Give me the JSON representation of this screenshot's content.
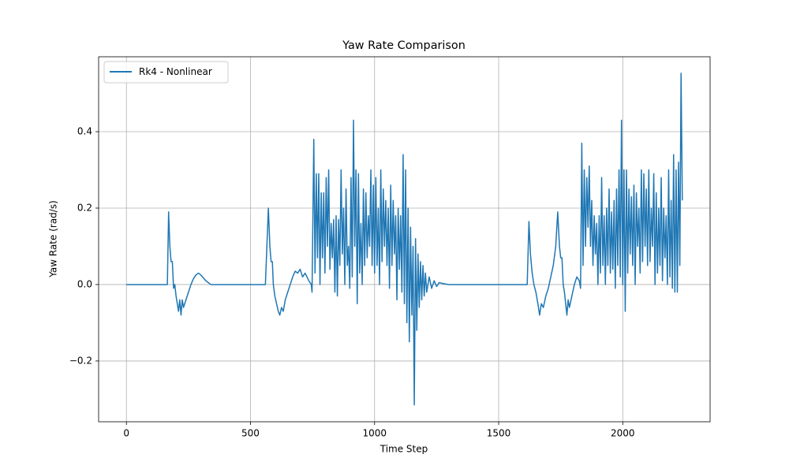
{
  "chart_data": {
    "type": "line",
    "title": "Yaw Rate Comparison",
    "x_label": "Time Step",
    "y_label": "Yaw Rate (rad/s)",
    "xlim": [
      -112,
      2352
    ],
    "ylim": [
      -0.359,
      0.596
    ],
    "xticks": [
      0,
      500,
      1000,
      1500,
      2000
    ],
    "yticks": [
      {
        "value": -0.2,
        "label": "−0.2"
      },
      {
        "value": 0,
        "label": "0.0"
      },
      0.2,
      0.4
    ],
    "grid": true,
    "legend": "upper left",
    "x": [
      0,
      165,
      170,
      175,
      180,
      185,
      190,
      195,
      200,
      210,
      215,
      220,
      225,
      230,
      240,
      250,
      260,
      270,
      280,
      290,
      300,
      320,
      340,
      360,
      560,
      572,
      578,
      583,
      588,
      592,
      598,
      605,
      612,
      618,
      625,
      632,
      640,
      650,
      660,
      670,
      680,
      690,
      700,
      710,
      720,
      735,
      745,
      748,
      755,
      760,
      765,
      770,
      775,
      780,
      785,
      790,
      795,
      800,
      805,
      810,
      815,
      820,
      825,
      830,
      835,
      840,
      845,
      850,
      855,
      860,
      865,
      870,
      875,
      880,
      885,
      890,
      895,
      900,
      905,
      910,
      915,
      920,
      925,
      930,
      935,
      940,
      945,
      950,
      955,
      960,
      965,
      970,
      975,
      980,
      985,
      990,
      995,
      1000,
      1005,
      1010,
      1015,
      1020,
      1025,
      1030,
      1035,
      1040,
      1045,
      1050,
      1055,
      1060,
      1065,
      1070,
      1075,
      1080,
      1085,
      1090,
      1095,
      1100,
      1105,
      1110,
      1115,
      1120,
      1125,
      1130,
      1135,
      1140,
      1145,
      1150,
      1155,
      1160,
      1165,
      1170,
      1175,
      1180,
      1185,
      1190,
      1195,
      1200,
      1205,
      1210,
      1220,
      1230,
      1240,
      1250,
      1260,
      1280,
      1300,
      1615,
      1622,
      1628,
      1635,
      1642,
      1650,
      1658,
      1665,
      1672,
      1680,
      1690,
      1700,
      1710,
      1720,
      1730,
      1738,
      1745,
      1750,
      1755,
      1760,
      1765,
      1770,
      1775,
      1780,
      1785,
      1795,
      1805,
      1815,
      1825,
      1830,
      1835,
      1840,
      1845,
      1850,
      1855,
      1860,
      1865,
      1870,
      1875,
      1880,
      1885,
      1890,
      1895,
      1900,
      1905,
      1910,
      1915,
      1920,
      1925,
      1930,
      1935,
      1940,
      1945,
      1950,
      1955,
      1960,
      1965,
      1970,
      1975,
      1980,
      1985,
      1990,
      1995,
      2000,
      2005,
      2010,
      2015,
      2020,
      2025,
      2030,
      2035,
      2040,
      2045,
      2050,
      2055,
      2060,
      2065,
      2070,
      2075,
      2080,
      2085,
      2090,
      2095,
      2100,
      2105,
      2110,
      2115,
      2120,
      2125,
      2130,
      2135,
      2140,
      2145,
      2150,
      2155,
      2160,
      2165,
      2170,
      2175,
      2180,
      2185,
      2190,
      2195,
      2200,
      2205,
      2210,
      2215,
      2220,
      2225,
      2230,
      2235,
      2240
    ],
    "series": [
      {
        "name": "Rk4 - Nonlinear",
        "color": "#1f77b4",
        "values": [
          0,
          0,
          0.19,
          0.1,
          0.06,
          0.06,
          -0.01,
          0,
          -0.03,
          -0.07,
          -0.04,
          -0.08,
          -0.04,
          -0.06,
          -0.04,
          -0.02,
          0,
          0.015,
          0.025,
          0.03,
          0.025,
          0.01,
          0,
          0,
          0,
          0.2,
          0.1,
          0.06,
          0.06,
          0,
          -0.03,
          -0.05,
          -0.07,
          -0.08,
          -0.06,
          -0.07,
          -0.04,
          -0.02,
          0,
          0.02,
          0.035,
          0.03,
          0.04,
          0.02,
          0.03,
          0.01,
          0,
          -0.02,
          0.38,
          0.03,
          0.29,
          0.07,
          0.29,
          0,
          0.24,
          0.07,
          0.24,
          0.03,
          0.28,
          0.1,
          0.3,
          0.04,
          0.16,
          0.07,
          0.17,
          -0.02,
          0.18,
          -0.03,
          0.17,
          0.05,
          0.3,
          0.08,
          0.2,
          0,
          0.25,
          0.05,
          0.1,
          -0.01,
          0.28,
          0.02,
          0.43,
          0.1,
          0.3,
          -0.05,
          0.29,
          0.03,
          0.16,
          0,
          0.25,
          0.05,
          0.24,
          0.07,
          0.18,
          0.1,
          0.3,
          0.05,
          0.26,
          0.03,
          0.28,
          0.05,
          0.2,
          0,
          0.3,
          0.06,
          0.25,
          0.1,
          0.22,
          0.05,
          0.2,
          -0.01,
          0.26,
          0.05,
          0.22,
          0.08,
          0.18,
          -0.04,
          0.2,
          0.04,
          0.18,
          -0.02,
          0.34,
          -0.05,
          0.3,
          -0.1,
          0.2,
          -0.15,
          0.15,
          -0.08,
          0.1,
          -0.315,
          0.12,
          -0.12,
          0.08,
          -0.06,
          0.06,
          -0.04,
          0.05,
          -0.03,
          0.03,
          -0.02,
          0.02,
          -0.01,
          0.01,
          -0.005,
          0.005,
          0.002,
          0,
          0,
          0.165,
          0.08,
          0.03,
          0,
          -0.02,
          -0.05,
          -0.08,
          -0.05,
          -0.06,
          -0.03,
          -0.01,
          0.02,
          0.05,
          0.1,
          0.19,
          0.1,
          0.07,
          0.07,
          0,
          -0.02,
          -0.05,
          -0.08,
          -0.04,
          -0.06,
          -0.03,
          0,
          0.02,
          0.01,
          -0.01,
          0.37,
          0.05,
          0.3,
          0.1,
          0.28,
          0.15,
          0.31,
          0.1,
          0.22,
          0.05,
          0.18,
          0.08,
          0.16,
          0,
          0.18,
          0.03,
          0.28,
          0.05,
          0.18,
          0,
          0.2,
          0.05,
          0.25,
          0.03,
          0.19,
          0.04,
          0.22,
          -0.01,
          0.25,
          0.05,
          0.3,
          0.02,
          0.43,
          0,
          0.3,
          -0.07,
          0.3,
          0.03,
          0.25,
          0.08,
          0.23,
          0.05,
          0.26,
          0,
          0.24,
          0.1,
          0.2,
          0.03,
          0.3,
          0.06,
          0.29,
          0.1,
          0.25,
          0.05,
          0.3,
          0.06,
          0.2,
          0.1,
          0.29,
          0,
          0.24,
          0.03,
          0.2,
          0.05,
          0.28,
          0.01,
          0.2,
          0.07,
          0.18,
          0,
          0.3,
          0.02,
          0.22,
          -0.01,
          0.34,
          -0.02,
          0.3,
          -0.02,
          0.32,
          0.05,
          0.553,
          0.22
        ]
      }
    ]
  }
}
